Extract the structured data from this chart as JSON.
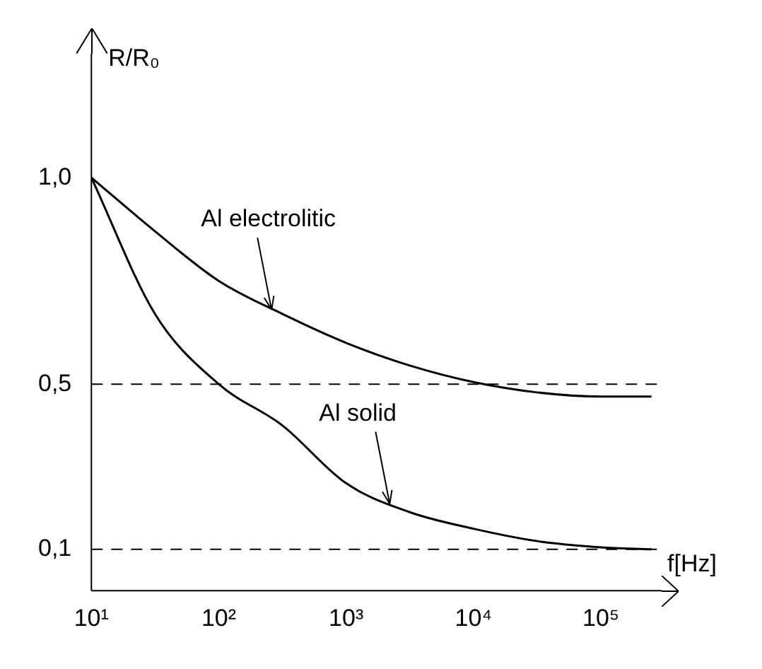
{
  "chart_data": {
    "type": "line",
    "xlabel": "f[Hz]",
    "ylabel": "R/R₀",
    "x": [
      10,
      31.6,
      100,
      316,
      1000,
      3160,
      10000,
      31600,
      100000,
      250000
    ],
    "series": [
      {
        "color": "#000000",
        "values": [
          1.0,
          0.87,
          0.75,
          0.67,
          0.6,
          0.545,
          0.505,
          0.48,
          0.47,
          0.47
        ]
      },
      {
        "color": "#000000",
        "values": [
          1.0,
          0.67,
          0.5,
          0.4,
          0.26,
          0.19,
          0.15,
          0.12,
          0.105,
          0.1
        ]
      }
    ],
    "log": "x",
    "xlim": [
      10,
      300000
    ],
    "xticks": [
      {
        "value": 10,
        "label": "10¹"
      },
      {
        "value": 100,
        "label": "10²"
      },
      {
        "value": 1000,
        "label": "10³"
      },
      {
        "value": 10000,
        "label": "10⁴"
      },
      {
        "value": 100000,
        "label": "10⁵"
      }
    ],
    "ylim": [
      0,
      1.3
    ],
    "yticks": [
      {
        "value": 0.1,
        "label": "0,1"
      },
      {
        "value": 0.5,
        "label": "0,5"
      },
      {
        "value": 1,
        "label": "1,0"
      }
    ],
    "ref_lines": [
      {
        "axis": "y",
        "value": 0.5,
        "line_style": "dashed"
      },
      {
        "axis": "y",
        "value": 0.1,
        "line_style": "dashed"
      }
    ],
    "annotations": [
      {
        "text": "Al electrolitic",
        "x": 260,
        "y": 0.68
      },
      {
        "text": "Al solid",
        "x": 2200,
        "y": 0.21
      }
    ],
    "grid": false,
    "legend": false,
    "marker": "none",
    "line_style": "solid"
  }
}
